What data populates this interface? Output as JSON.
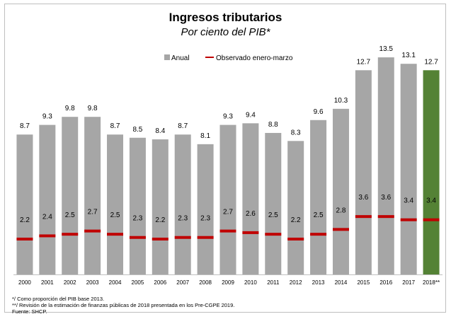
{
  "chart_data": {
    "type": "bar",
    "title": "Ingresos tributarios",
    "subtitle": "Por ciento del PIB*",
    "categories": [
      "2000",
      "2001",
      "2002",
      "2003",
      "2004",
      "2005",
      "2006",
      "2007",
      "2008",
      "2009",
      "2010",
      "2011",
      "2012",
      "2013",
      "2014",
      "2015",
      "2016",
      "2017",
      "2018**"
    ],
    "series": [
      {
        "name": "Anual",
        "values": [
          8.7,
          9.3,
          9.8,
          9.8,
          8.7,
          8.5,
          8.4,
          8.7,
          8.1,
          9.3,
          9.4,
          8.8,
          8.3,
          9.6,
          10.3,
          12.7,
          13.5,
          13.1,
          12.7
        ]
      },
      {
        "name": "Observado enero-marzo",
        "values": [
          2.2,
          2.4,
          2.5,
          2.7,
          2.5,
          2.3,
          2.2,
          2.3,
          2.3,
          2.7,
          2.6,
          2.5,
          2.2,
          2.5,
          2.8,
          3.6,
          3.6,
          3.4,
          3.4
        ]
      }
    ],
    "ylim": [
      0,
      15
    ],
    "legend": "top-center",
    "colors": {
      "bar": "#a6a6a6",
      "bar_highlight": "#548235",
      "marker": "#c00000"
    },
    "highlight_category": "2018**"
  },
  "notes": [
    "*/ Como proporción del PIB base 2013.",
    "**/ Revisión de la estimación de finanzas públicas de 2018 presentada en los Pre-CGPE 2019.",
    "Fuente: SHCP."
  ]
}
